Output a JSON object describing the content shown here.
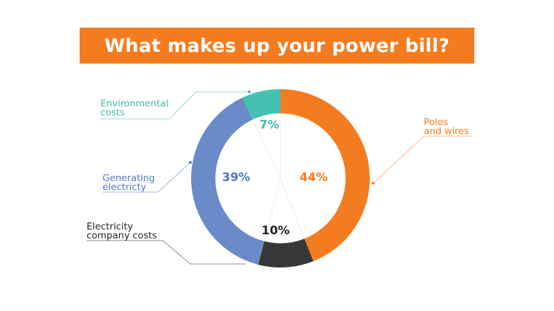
{
  "chart_data": {
    "type": "pie",
    "donut": true,
    "title": "What makes up your power bill?",
    "unit": "%",
    "slices": [
      {
        "label": [
          "Poles",
          "and wires"
        ],
        "value": 44,
        "display": "44%",
        "color": "#f47c20"
      },
      {
        "label": [
          "Electricity",
          "company costs"
        ],
        "value": 10,
        "display": "10%",
        "color": "#37373a",
        "label_color": "#222222"
      },
      {
        "label": [
          "Generating",
          "electricty"
        ],
        "value": 39,
        "display": "39%",
        "color": "#6b8bc8",
        "label_color": "#4f78c4"
      },
      {
        "label": [
          "Environmental",
          "costs"
        ],
        "value": 7,
        "display": "7%",
        "color": "#45c1b1",
        "label_color": "#3dbcab"
      }
    ],
    "colors": {
      "banner": "#f47c20",
      "banner_text": "#ffffff"
    }
  }
}
